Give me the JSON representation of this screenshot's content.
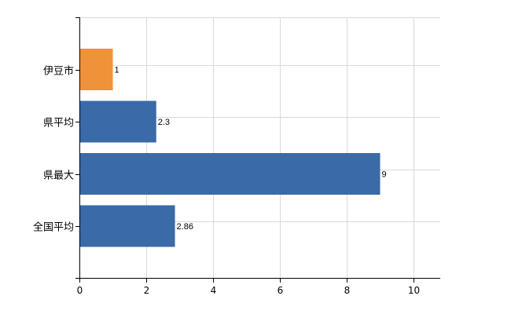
{
  "chart_data": {
    "type": "bar",
    "orientation": "horizontal",
    "categories": [
      "伊豆市",
      "県平均",
      "県最大",
      "全国平均"
    ],
    "values": [
      1,
      2.3,
      9,
      2.86
    ],
    "data_labels": [
      "1",
      "2.3",
      "9",
      "2.86"
    ],
    "bar_colors": [
      "#F0923A",
      "#3A6AA8",
      "#3A6AA8",
      "#3A6AA8"
    ],
    "xlim": [
      0,
      10.8
    ],
    "x_ticks": [
      0,
      2,
      4,
      6,
      8,
      10
    ],
    "x_tick_labels": [
      "0",
      "2",
      "4",
      "6",
      "8",
      "10"
    ],
    "grid": true,
    "title": "",
    "xlabel": "",
    "ylabel": ""
  }
}
